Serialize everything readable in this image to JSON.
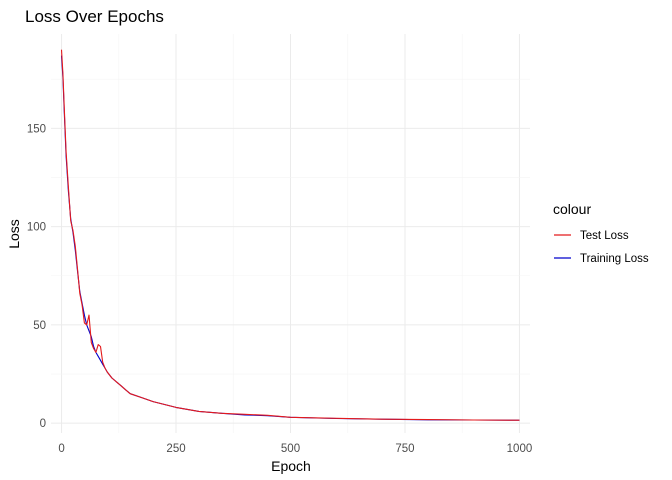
{
  "chart_data": {
    "type": "line",
    "title": "Loss Over Epochs",
    "xlabel": "Epoch",
    "ylabel": "Loss",
    "xlim": [
      -23,
      1023
    ],
    "ylim": [
      -5,
      198
    ],
    "x_ticks": [
      0,
      250,
      500,
      750,
      1000
    ],
    "y_ticks": [
      0,
      50,
      100,
      150
    ],
    "grid": true,
    "legend": {
      "title": "colour",
      "position": "right"
    },
    "series": [
      {
        "name": "Test Loss",
        "color": "#e41a1c",
        "x": [
          0,
          3,
          6,
          10,
          15,
          20,
          25,
          30,
          35,
          40,
          45,
          50,
          55,
          60,
          65,
          70,
          75,
          80,
          85,
          90,
          95,
          100,
          110,
          120,
          130,
          140,
          150,
          175,
          200,
          250,
          300,
          350,
          400,
          450,
          500,
          600,
          700,
          800,
          900,
          1000
        ],
        "y": [
          190,
          178,
          160,
          138,
          120,
          103,
          98,
          90,
          78,
          66,
          60,
          51,
          50,
          55,
          41,
          38,
          36,
          40,
          39,
          31,
          28,
          26,
          23,
          21,
          19,
          17,
          15,
          13,
          11,
          8,
          6,
          5,
          4.5,
          4,
          3,
          2.5,
          2,
          1.8,
          1.6,
          1.5
        ]
      },
      {
        "name": "Training Loss",
        "color": "#0000cc",
        "x": [
          0,
          3,
          6,
          10,
          15,
          20,
          25,
          30,
          35,
          40,
          45,
          50,
          55,
          60,
          65,
          70,
          75,
          80,
          85,
          90,
          95,
          100,
          110,
          120,
          130,
          140,
          150,
          175,
          200,
          250,
          300,
          350,
          400,
          450,
          500,
          600,
          700,
          800,
          900,
          1000
        ],
        "y": [
          187,
          176,
          158,
          136,
          118,
          104,
          97,
          88,
          77,
          67,
          61,
          55,
          50,
          47,
          44,
          39,
          36,
          34,
          32,
          30,
          28,
          26,
          23,
          21,
          19,
          17,
          15,
          13,
          11,
          8,
          6,
          5,
          4.2,
          3.8,
          3,
          2.4,
          2,
          1.7,
          1.6,
          1.5
        ]
      }
    ]
  }
}
